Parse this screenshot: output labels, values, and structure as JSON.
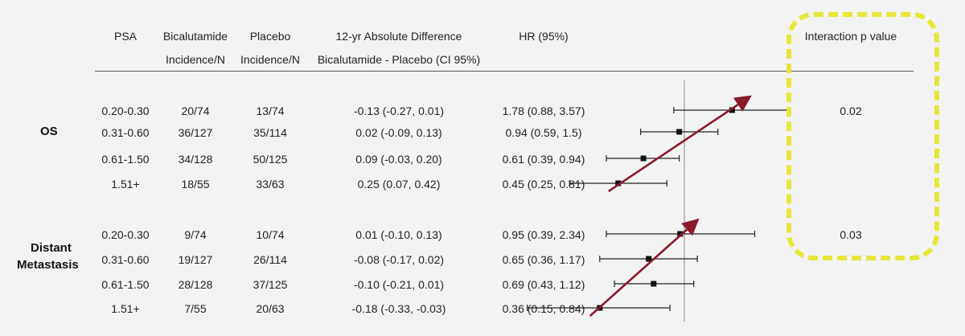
{
  "headers": {
    "psa": "PSA",
    "bic_1": "Bicalutamide",
    "bic_2": "Incidence/N",
    "plc_1": "Placebo",
    "plc_2": "Incidence/N",
    "diff_1": "12-yr Absolute Difference",
    "diff_2": "Bicalutamide - Placebo (CI 95%)",
    "hr": "HR (95%)",
    "interaction": "Interaction p value"
  },
  "groups": [
    {
      "label_lines": [
        "OS"
      ],
      "interaction_p": "0.02",
      "rows": [
        {
          "psa": "0.20-0.30",
          "bic": "20/74",
          "plc": "13/74",
          "diff": "-0.13 (-0.27, 0.01)",
          "hr": "1.78 (0.88, 3.57)"
        },
        {
          "psa": "0.31-0.60",
          "bic": "36/127",
          "plc": "35/114",
          "diff": "0.02 (-0.09, 0.13)",
          "hr": "0.94 (0.59, 1.5)"
        },
        {
          "psa": "0.61-1.50",
          "bic": "34/128",
          "plc": "50/125",
          "diff": "0.09 (-0.03, 0.20)",
          "hr": "0.61 (0.39, 0.94)"
        },
        {
          "psa": "1.51+",
          "bic": "18/55",
          "plc": "33/63",
          "diff": "0.25 (0.07, 0.42)",
          "hr": "0.45 (0.25, 0.81)"
        }
      ]
    },
    {
      "label_lines": [
        "Distant",
        "Metastasis"
      ],
      "interaction_p": "0.03",
      "rows": [
        {
          "psa": "0.20-0.30",
          "bic": "9/74",
          "plc": "10/74",
          "diff": "0.01 (-0.10, 0.13)",
          "hr": "0.95 (0.39, 2.34)"
        },
        {
          "psa": "0.31-0.60",
          "bic": "19/127",
          "plc": "26/114",
          "diff": "-0.08 (-0.17, 0.02)",
          "hr": "0.65 (0.36, 1.17)"
        },
        {
          "psa": "0.61-1.50",
          "bic": "28/128",
          "plc": "37/125",
          "diff": "-0.10 (-0.21, 0.01)",
          "hr": "0.69 (0.43, 1.12)"
        },
        {
          "psa": "1.51+",
          "bic": "7/55",
          "plc": "20/63",
          "diff": "-0.18 (-0.33, -0.03)",
          "hr": "0.36 (0.15, 0.84)"
        }
      ]
    }
  ],
  "chart_data": {
    "type": "forest",
    "scale": "log",
    "reference_line": 1,
    "series": [
      {
        "group": "OS",
        "points": [
          {
            "psa": "0.20-0.30",
            "hr": 1.78,
            "lo": 0.88,
            "hi": 3.57
          },
          {
            "psa": "0.31-0.60",
            "hr": 0.94,
            "lo": 0.59,
            "hi": 1.5
          },
          {
            "psa": "0.61-1.50",
            "hr": 0.61,
            "lo": 0.39,
            "hi": 0.94
          },
          {
            "psa": "1.51+",
            "hr": 0.45,
            "lo": 0.25,
            "hi": 0.81
          }
        ]
      },
      {
        "group": "Distant Metastasis",
        "points": [
          {
            "psa": "0.20-0.30",
            "hr": 0.95,
            "lo": 0.39,
            "hi": 2.34
          },
          {
            "psa": "0.31-0.60",
            "hr": 0.65,
            "lo": 0.36,
            "hi": 1.17
          },
          {
            "psa": "0.61-1.50",
            "hr": 0.69,
            "lo": 0.43,
            "hi": 1.12
          },
          {
            "psa": "1.51+",
            "hr": 0.36,
            "lo": 0.15,
            "hi": 0.84
          }
        ]
      }
    ],
    "annotations": [
      {
        "type": "trend-arrow",
        "group": "OS",
        "color": "#8b1a2b"
      },
      {
        "type": "trend-arrow",
        "group": "Distant Metastasis",
        "color": "#8b1a2b"
      },
      {
        "type": "dashed-highlight-box",
        "target": "interaction-p-column",
        "color": "#e6e63a"
      }
    ]
  }
}
